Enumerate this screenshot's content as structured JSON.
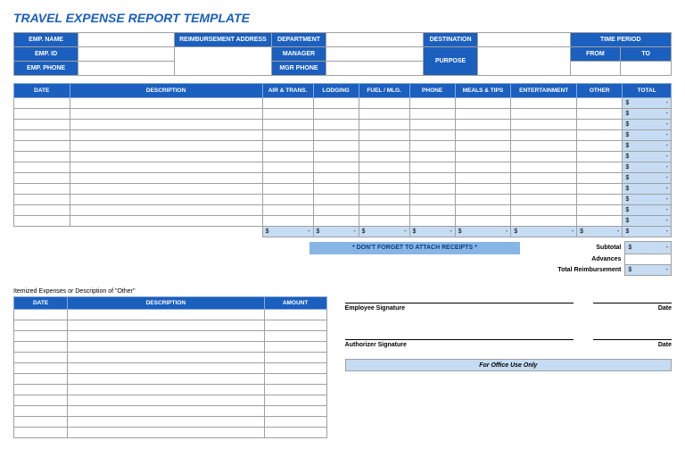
{
  "title": "TRAVEL EXPENSE REPORT TEMPLATE",
  "colors": {
    "primary": "#1b5fbf",
    "light_blue": "#c5dcf3",
    "mid_blue": "#87b6e6",
    "border": "#a0a0a0"
  },
  "header": {
    "emp_name_label": "EMP. NAME",
    "emp_id_label": "EMP. ID",
    "emp_phone_label": "EMP. PHONE",
    "reimb_addr_label": "REIMBURSEMENT ADDRESS",
    "department_label": "DEPARTMENT",
    "manager_label": "MANAGER",
    "mgr_phone_label": "MGR PHONE",
    "destination_label": "DESTINATION",
    "purpose_label": "PURPOSE",
    "time_period_label": "TIME PERIOD",
    "from_label": "FROM",
    "to_label": "TO",
    "emp_name": "",
    "emp_id": "",
    "emp_phone": "",
    "reimb_addr": "",
    "department": "",
    "manager": "",
    "mgr_phone": "",
    "destination": "",
    "purpose": "",
    "from": "",
    "to": ""
  },
  "main": {
    "columns": [
      "DATE",
      "DESCRIPTION",
      "AIR & TRANS.",
      "LODGING",
      "FUEL / MLG.",
      "PHONE",
      "MEALS & TIPS",
      "ENTERTAINMENT",
      "OTHER",
      "TOTAL"
    ],
    "row_count": 12,
    "total_placeholder_dollar": "$",
    "total_placeholder_dash": "-"
  },
  "reminder": "* DON'T FORGET TO ATTACH RECEIPTS *",
  "summary": {
    "subtotal_label": "Subtotal",
    "advances_label": "Advances",
    "total_reimb_label": "Total Reimbursement",
    "dollar": "$",
    "dash": "-"
  },
  "itemized": {
    "caption": "Itemized Expenses or Description of \"Other\"",
    "columns": [
      "DATE",
      "DESCRIPTION",
      "AMOUNT"
    ],
    "row_count": 12
  },
  "signatures": {
    "employee_label": "Employee Signature",
    "authorizer_label": "Authorizer Signature",
    "date_label": "Date"
  },
  "office_use": "For Office Use Only"
}
